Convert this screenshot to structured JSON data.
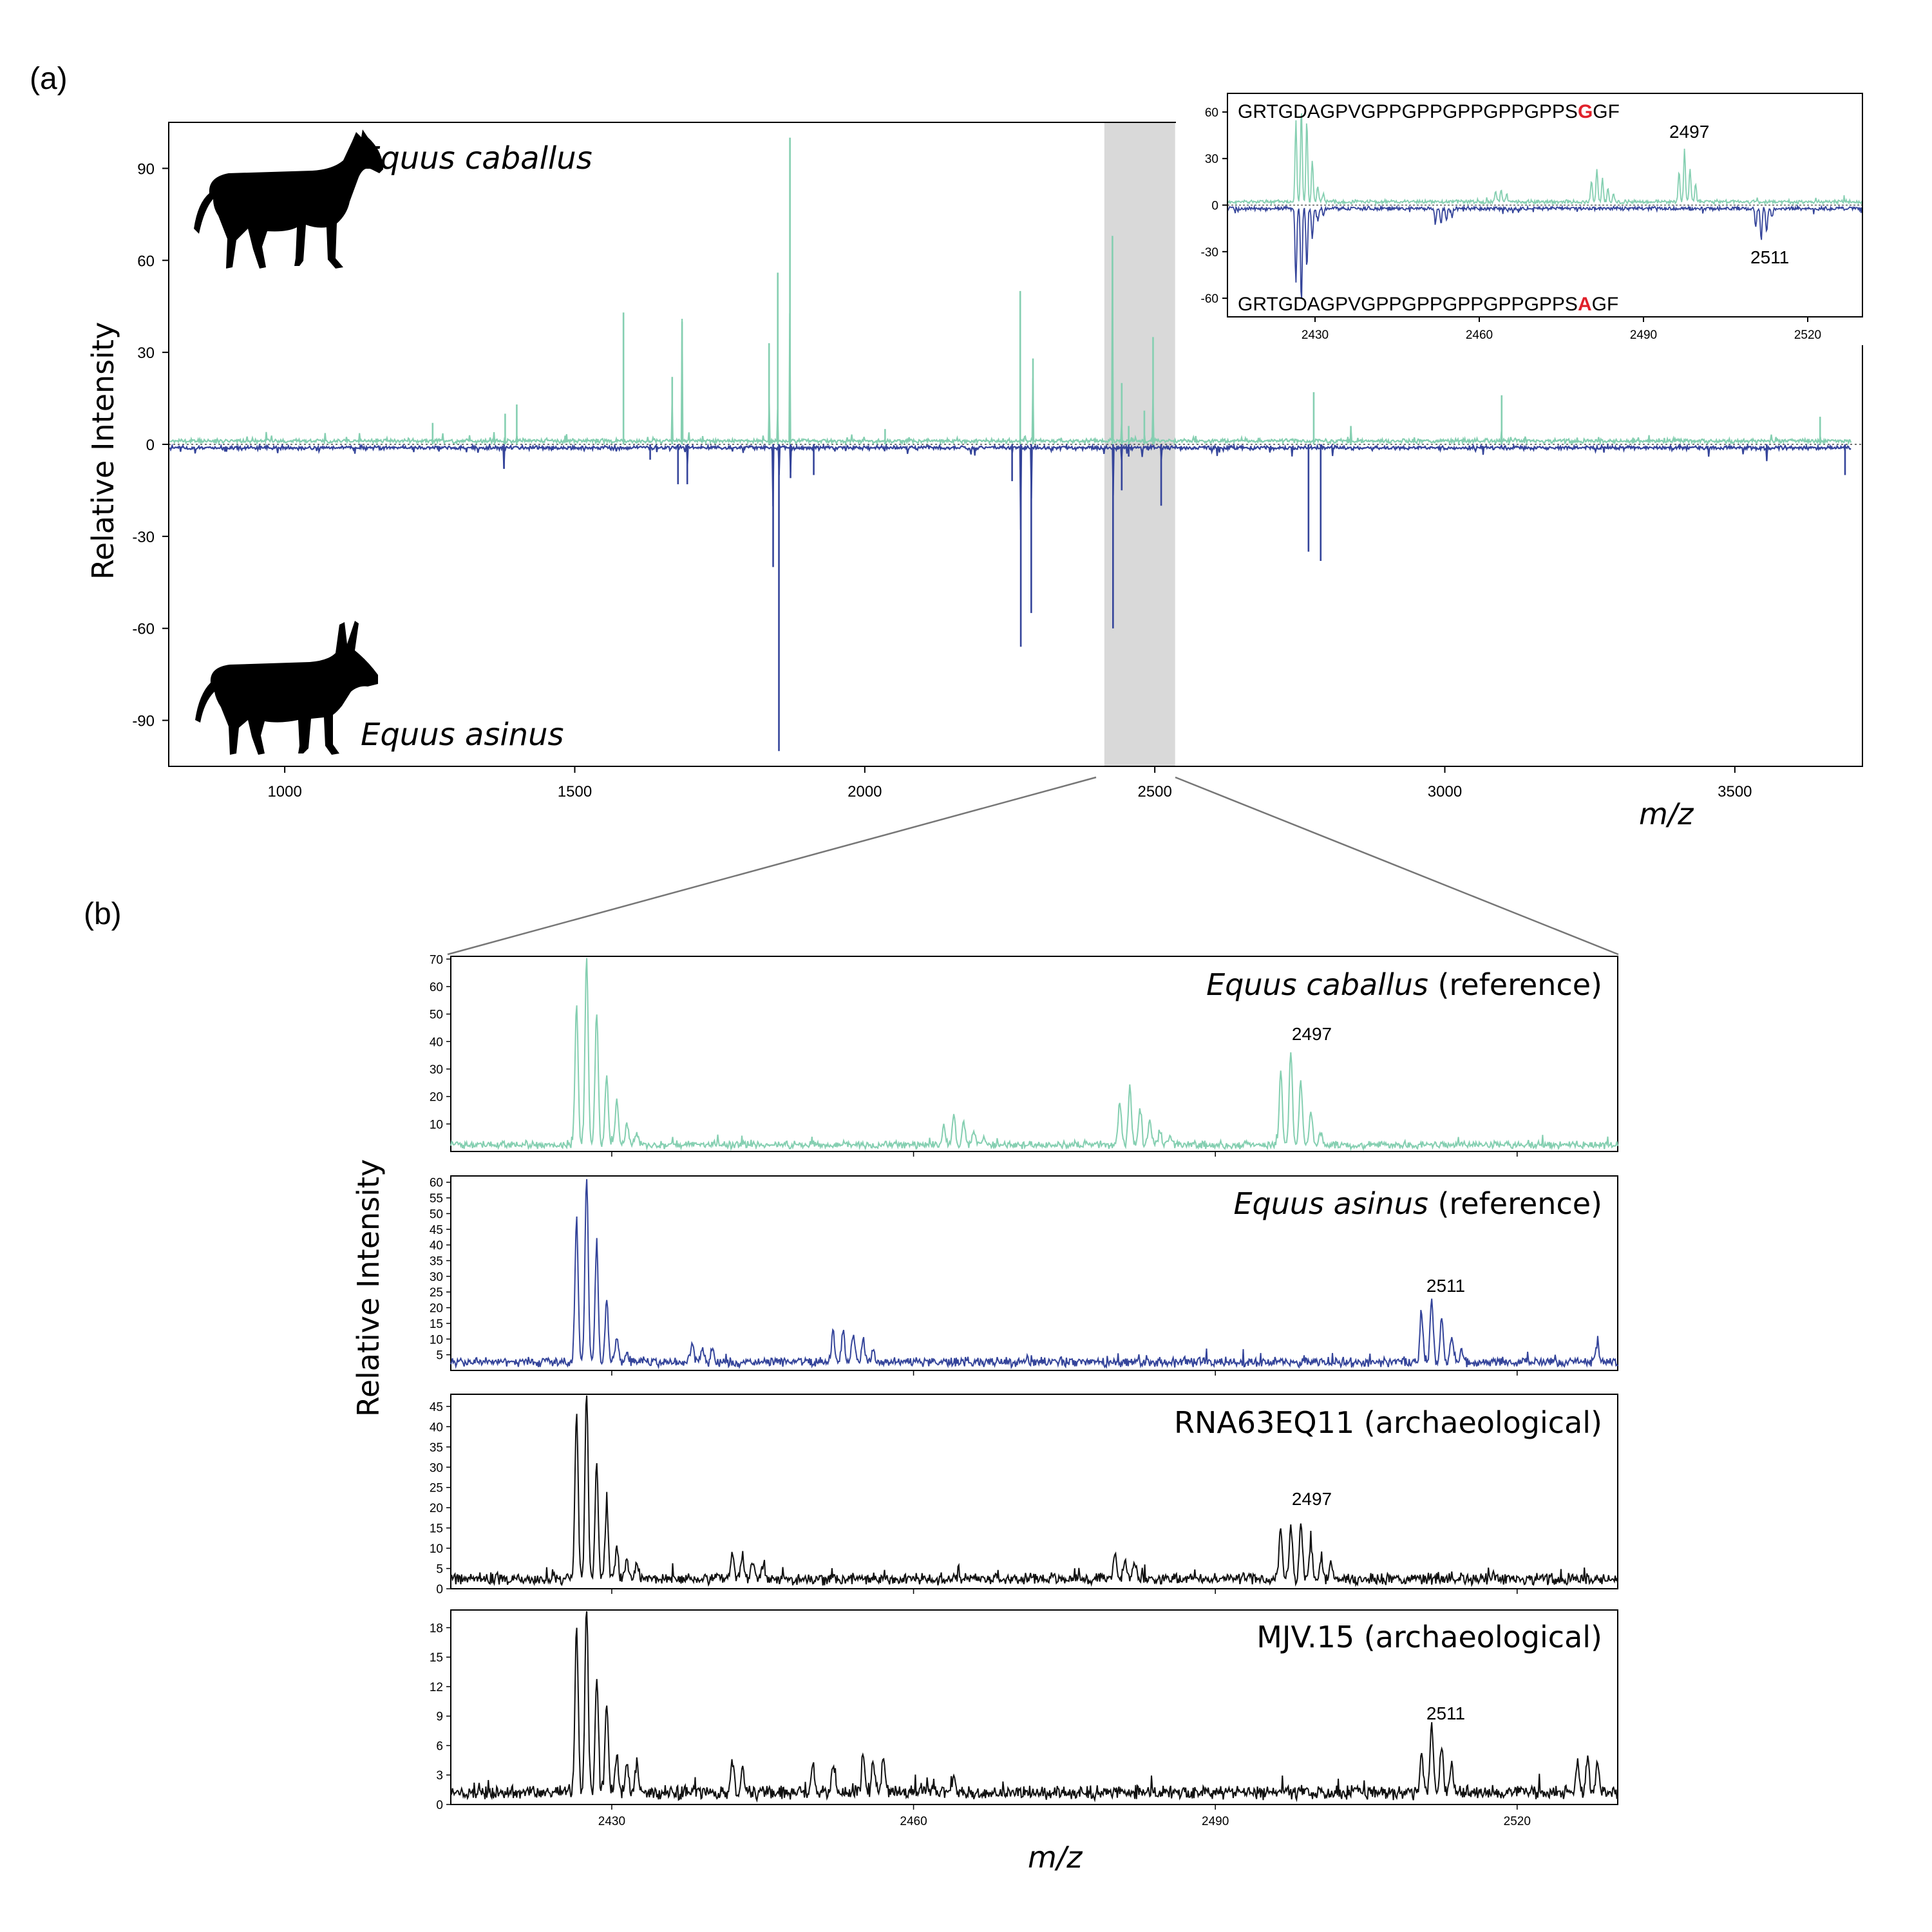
{
  "figure": {
    "panel_a_label": "(a)",
    "panel_b_label": "(b)"
  },
  "colors": {
    "caballus": "#85cfb1",
    "asinus": "#34449a",
    "archaeological": "#111111",
    "highlight": "#d9d9d9",
    "substitution": "#e0202a"
  },
  "icons": {
    "horse": "horse-silhouette-icon",
    "donkey": "donkey-silhouette-icon"
  },
  "chart_data": [
    {
      "id": "main-mirror",
      "type": "line",
      "xlabel": "m/z",
      "ylabel": "Relative Intensity",
      "xlim": [
        800,
        3720
      ],
      "ylim": [
        -105,
        105
      ],
      "xticks": [
        1000,
        1500,
        2000,
        2500,
        3000,
        3500
      ],
      "yticks": [
        90,
        60,
        30,
        0,
        -30,
        -60,
        -90
      ],
      "highlight_range": [
        2413,
        2535
      ],
      "series": [
        {
          "name": "Equus caballus",
          "direction": "up",
          "peaks": [
            [
              1255,
              7
            ],
            [
              1380,
              10
            ],
            [
              1400,
              13
            ],
            [
              1584,
              43
            ],
            [
              1668,
              22
            ],
            [
              1685,
              40
            ],
            [
              1835,
              33
            ],
            [
              1850,
              56
            ],
            [
              1871,
              100
            ],
            [
              2035,
              5
            ],
            [
              2268,
              50
            ],
            [
              2290,
              28
            ],
            [
              2427,
              68
            ],
            [
              2443,
              20
            ],
            [
              2455,
              6
            ],
            [
              2482,
              11
            ],
            [
              2497,
              35
            ],
            [
              2774,
              17
            ],
            [
              2838,
              6
            ],
            [
              3098,
              16
            ],
            [
              3647,
              9
            ]
          ]
        },
        {
          "name": "Equus asinus",
          "direction": "down",
          "peaks": [
            [
              1378,
              8
            ],
            [
              1630,
              5
            ],
            [
              1678,
              13
            ],
            [
              1694,
              13
            ],
            [
              1842,
              40
            ],
            [
              1852,
              100
            ],
            [
              1872,
              11
            ],
            [
              1912,
              10
            ],
            [
              2254,
              12
            ],
            [
              2269,
              66
            ],
            [
              2287,
              55
            ],
            [
              2428,
              60
            ],
            [
              2443,
              15
            ],
            [
              2455,
              4
            ],
            [
              2511,
              20
            ],
            [
              2765,
              35
            ],
            [
              2786,
              38
            ],
            [
              3555,
              5
            ],
            [
              3690,
              10
            ]
          ]
        }
      ]
    },
    {
      "id": "inset-mirror",
      "type": "line",
      "xlim": [
        2414,
        2530
      ],
      "ylim": [
        -72,
        72
      ],
      "xticks": [
        2430,
        2460,
        2490,
        2520
      ],
      "yticks": [
        60,
        30,
        0,
        -30,
        -60
      ],
      "annotations": [
        {
          "text": "2497",
          "series": "Equus caballus"
        },
        {
          "text": "2511",
          "series": "Equus asinus"
        }
      ],
      "sequence_top": {
        "before": "GRTGDAGPVGPPGPPGPPGPPGPPS",
        "substitution": "G",
        "after": "GF"
      },
      "sequence_bottom": {
        "before": "GRTGDAGPVGPPGPPGPPGPPGPPS",
        "substitution": "A",
        "after": "GF"
      },
      "series": [
        {
          "name": "Equus caballus",
          "direction": "up",
          "peaks": [
            [
              2426.5,
              52
            ],
            [
              2427.5,
              60
            ],
            [
              2428.5,
              52
            ],
            [
              2429.5,
              26
            ],
            [
              2430.5,
              10
            ],
            [
              2431.5,
              5
            ],
            [
              2463,
              7
            ],
            [
              2464,
              8
            ],
            [
              2465,
              5
            ],
            [
              2480.5,
              14
            ],
            [
              2481.5,
              21
            ],
            [
              2482.5,
              15
            ],
            [
              2483.5,
              9
            ],
            [
              2484.5,
              5
            ],
            [
              2496.5,
              20
            ],
            [
              2497.5,
              34
            ],
            [
              2498.5,
              22
            ],
            [
              2499.5,
              12
            ]
          ]
        },
        {
          "name": "Equus asinus",
          "direction": "down",
          "peaks": [
            [
              2426.5,
              47
            ],
            [
              2427.5,
              60
            ],
            [
              2428.5,
              38
            ],
            [
              2429.5,
              20
            ],
            [
              2430.5,
              8
            ],
            [
              2431.5,
              4
            ],
            [
              2452,
              8
            ],
            [
              2453,
              10
            ],
            [
              2454,
              8
            ],
            [
              2455,
              5
            ],
            [
              2510.5,
              12
            ],
            [
              2511.5,
              20
            ],
            [
              2512.5,
              15
            ],
            [
              2513.5,
              6
            ]
          ]
        }
      ]
    },
    {
      "id": "b1",
      "type": "line",
      "label_italic": "Equus caballus",
      "label_plain": " (reference)",
      "xlim": [
        2414,
        2530
      ],
      "ylim": [
        0,
        71
      ],
      "yticks": [
        10,
        20,
        30,
        40,
        50,
        60,
        70
      ],
      "xticks": [
        2430,
        2460,
        2490,
        2520
      ],
      "annotation": "2497",
      "baseline": 2.2,
      "series": [
        {
          "name": "Equus caballus",
          "peaks": [
            [
              2426.5,
              51
            ],
            [
              2427.5,
              68
            ],
            [
              2428.5,
              49
            ],
            [
              2429.5,
              25
            ],
            [
              2430.5,
              17
            ],
            [
              2431.5,
              8
            ],
            [
              2432.5,
              4
            ],
            [
              2463,
              7
            ],
            [
              2464,
              11
            ],
            [
              2465,
              8
            ],
            [
              2466,
              5
            ],
            [
              2467,
              3
            ],
            [
              2480.5,
              16
            ],
            [
              2481.5,
              21
            ],
            [
              2482.5,
              13
            ],
            [
              2483.5,
              9
            ],
            [
              2484.5,
              5
            ],
            [
              2485.5,
              3
            ],
            [
              2496.5,
              26
            ],
            [
              2497.5,
              34
            ],
            [
              2498.5,
              23
            ],
            [
              2499.5,
              12
            ],
            [
              2500.5,
              5
            ]
          ]
        }
      ]
    },
    {
      "id": "b2",
      "type": "line",
      "label_italic": "Equus asinus",
      "label_plain": " (reference)",
      "xlim": [
        2414,
        2530
      ],
      "ylim": [
        0,
        62
      ],
      "yticks": [
        5,
        10,
        15,
        20,
        25,
        30,
        35,
        40,
        45,
        50,
        55,
        60
      ],
      "annotation": "2511",
      "baseline": 2.4,
      "series": [
        {
          "name": "Equus asinus",
          "peaks": [
            [
              2426.5,
              46
            ],
            [
              2427.5,
              60
            ],
            [
              2428.5,
              38
            ],
            [
              2429.5,
              20
            ],
            [
              2430.5,
              8
            ],
            [
              2431.5,
              4
            ],
            [
              2438,
              6
            ],
            [
              2439,
              5
            ],
            [
              2440,
              4
            ],
            [
              2452,
              10
            ],
            [
              2453,
              11
            ],
            [
              2454,
              9
            ],
            [
              2455,
              7
            ],
            [
              2456,
              4
            ],
            [
              2510.5,
              15
            ],
            [
              2511.5,
              20
            ],
            [
              2512.5,
              14
            ],
            [
              2513.5,
              8
            ],
            [
              2514.5,
              4
            ],
            [
              2528,
              6
            ]
          ]
        }
      ]
    },
    {
      "id": "b3",
      "type": "line",
      "label_plain": "RNA63EQ11 (archaeological)",
      "xlim": [
        2414,
        2530
      ],
      "ylim": [
        0,
        48
      ],
      "yticks": [
        0,
        5,
        10,
        15,
        20,
        25,
        30,
        35,
        40,
        45
      ],
      "annotation": "2497",
      "baseline": 2.2,
      "series": [
        {
          "name": "RNA63EQ11",
          "peaks": [
            [
              2426.5,
              41
            ],
            [
              2427.5,
              47
            ],
            [
              2428.5,
              28
            ],
            [
              2429.5,
              18
            ],
            [
              2430.5,
              8
            ],
            [
              2431.5,
              5
            ],
            [
              2432.5,
              4
            ],
            [
              2442,
              7
            ],
            [
              2443,
              6
            ],
            [
              2444,
              5
            ],
            [
              2445,
              4
            ],
            [
              2480,
              6
            ],
            [
              2481,
              5
            ],
            [
              2482,
              4
            ],
            [
              2496.5,
              12
            ],
            [
              2497.5,
              14
            ],
            [
              2498.5,
              13
            ],
            [
              2499.5,
              9
            ],
            [
              2500.5,
              5
            ],
            [
              2501.5,
              4
            ]
          ]
        }
      ]
    },
    {
      "id": "b4",
      "type": "line",
      "label_plain": "MJV.15 (archaeological)",
      "xlim": [
        2414,
        2530
      ],
      "ylim": [
        0,
        19.8
      ],
      "yticks": [
        0,
        3,
        6,
        9,
        12,
        15,
        18
      ],
      "xticks": [
        2430,
        2460,
        2490,
        2520
      ],
      "xlabel": "m/z",
      "annotation": "2511",
      "baseline": 1.1,
      "series": [
        {
          "name": "MJV.15",
          "peaks": [
            [
              2426.5,
              17
            ],
            [
              2427.5,
              19
            ],
            [
              2428.5,
              12
            ],
            [
              2429.5,
              9
            ],
            [
              2430.5,
              4
            ],
            [
              2431.5,
              3
            ],
            [
              2432.5,
              3
            ],
            [
              2442,
              3
            ],
            [
              2443,
              2.5
            ],
            [
              2450,
              3
            ],
            [
              2452,
              2.5
            ],
            [
              2455,
              4
            ],
            [
              2456,
              3.5
            ],
            [
              2457,
              4
            ],
            [
              2464,
              2
            ],
            [
              2510.5,
              4
            ],
            [
              2511.5,
              7
            ],
            [
              2512.5,
              5
            ],
            [
              2513.5,
              3
            ],
            [
              2526,
              3
            ],
            [
              2527,
              3.5
            ],
            [
              2528,
              3
            ]
          ]
        }
      ]
    }
  ],
  "panel_b_ylabel": "Relative Intensity",
  "panel_b_xlabel": "m/z"
}
